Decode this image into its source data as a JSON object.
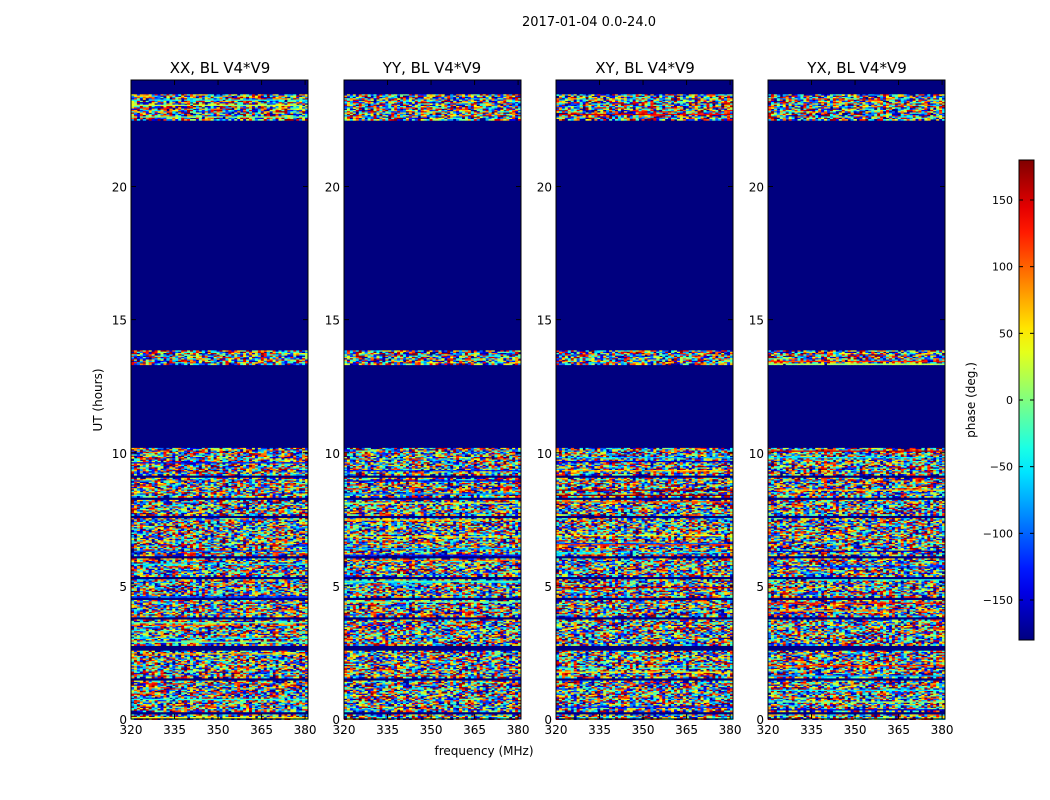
{
  "chart_data": {
    "type": "heatmap",
    "suptitle": "2017-01-04 0.0-24.0",
    "xlabel": "frequency (MHz)",
    "ylabel": "UT (hours)",
    "colorbar_label": "phase (deg.)",
    "colormap": "jet",
    "clim": [
      -180,
      180
    ],
    "colorbar_ticks": [
      150,
      100,
      50,
      0,
      -50,
      -100,
      -150
    ],
    "colorbar_tick_labels": [
      "150",
      "100",
      "50",
      "0",
      "−50",
      "−100",
      "−150"
    ],
    "xlim": [
      320,
      381
    ],
    "ylim": [
      0,
      24
    ],
    "xticks": [
      320,
      335,
      350,
      365,
      380
    ],
    "yticks": [
      0,
      5,
      10,
      15,
      20
    ],
    "masked_color": "#00007f",
    "panels": [
      {
        "title": "XX, BL V4*V9"
      },
      {
        "title": "YY, BL V4*V9"
      },
      {
        "title": "XY, BL V4*V9"
      },
      {
        "title": "YX, BL V4*V9"
      }
    ],
    "data_hour_ranges": [
      [
        0,
        10.2
      ],
      [
        13.3,
        13.85
      ],
      [
        22.5,
        23.45
      ]
    ],
    "masked_hour_bands": [
      [
        9.05,
        9.15
      ],
      [
        8.25,
        8.35
      ],
      [
        7.55,
        7.65
      ],
      [
        6.05,
        6.15
      ],
      [
        5.25,
        5.35
      ],
      [
        4.45,
        4.55
      ],
      [
        3.75,
        3.85
      ],
      [
        2.55,
        2.75
      ],
      [
        1.45,
        1.55
      ],
      [
        0.15,
        0.25
      ]
    ]
  }
}
